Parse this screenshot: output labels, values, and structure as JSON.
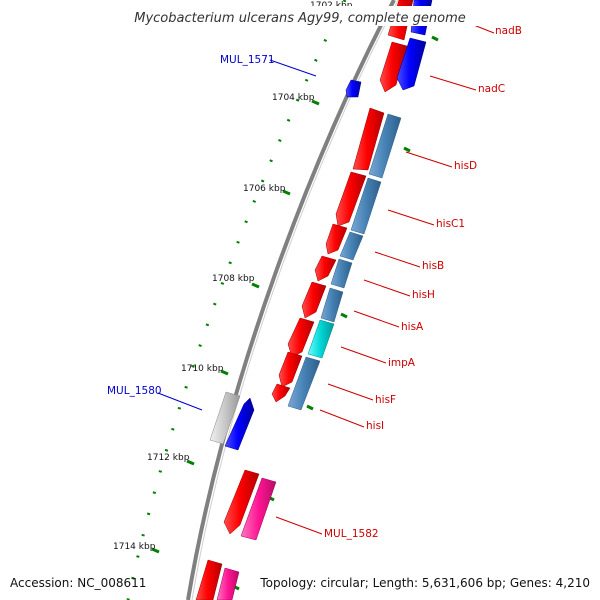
{
  "title": "Mycobacterium ulcerans Agy99, complete genome",
  "footer": {
    "accession": "Accession: NC_008611",
    "topology": "Topology: circular; Length: 5,631,606 bp; Genes: 4,210"
  },
  "ticks": [
    {
      "label": "1702 kbp"
    },
    {
      "label": "1704 kbp"
    },
    {
      "label": "1706 kbp"
    },
    {
      "label": "1708 kbp"
    },
    {
      "label": "1710 kbp"
    },
    {
      "label": "1712 kbp"
    },
    {
      "label": "1714 kbp"
    }
  ],
  "genes": [
    {
      "name": "nadB",
      "color": "#cc0000"
    },
    {
      "name": "nadC",
      "color": "#cc0000"
    },
    {
      "name": "hisD",
      "color": "#cc0000"
    },
    {
      "name": "hisC1",
      "color": "#cc0000"
    },
    {
      "name": "hisB",
      "color": "#cc0000"
    },
    {
      "name": "hisH",
      "color": "#cc0000"
    },
    {
      "name": "hisA",
      "color": "#cc0000"
    },
    {
      "name": "impA",
      "color": "#cc0000"
    },
    {
      "name": "hisF",
      "color": "#cc0000"
    },
    {
      "name": "hisI",
      "color": "#cc0000"
    },
    {
      "name": "MUL_1582",
      "color": "#cc0000"
    },
    {
      "name": "MUL_1571",
      "color": "#0000cc"
    },
    {
      "name": "MUL_1580",
      "color": "#0000cc"
    }
  ],
  "colors": {
    "backbone": "#808080",
    "cds_forward": "#ff0000",
    "cds_reverse": "#0000ff",
    "operon": "#4682b4",
    "operon_highlight": "#00cccc",
    "pseudogene": "#c0c0c0",
    "feature_pink": "#ff1493",
    "tick": "#008000"
  }
}
